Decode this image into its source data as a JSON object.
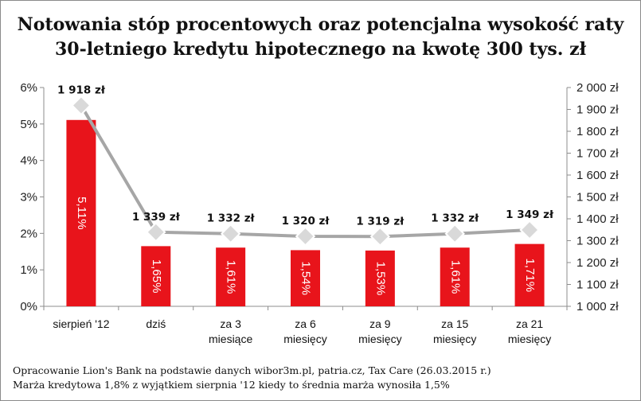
{
  "chart_data": {
    "type": "bar+line",
    "title": "Notowania stóp procentowych oraz potencjalna wysokość raty 30-letniego kredytu hipotecznego na kwotę 300 tys. zł",
    "categories": [
      [
        "sierpień '12"
      ],
      [
        "dziś"
      ],
      [
        "za 3",
        "miesiące"
      ],
      [
        "za 6",
        "miesięcy"
      ],
      [
        "za 9",
        "miesięcy"
      ],
      [
        "za 15",
        "miesięcy"
      ],
      [
        "za 21",
        "miesięcy"
      ]
    ],
    "bars": {
      "axis": "left",
      "values": [
        5.11,
        1.65,
        1.61,
        1.54,
        1.53,
        1.61,
        1.71
      ],
      "labels": [
        "5,11%",
        "1,65%",
        "1,61%",
        "1,54%",
        "1,53%",
        "1,61%",
        "1,71%"
      ],
      "color": "#e8141b"
    },
    "line": {
      "axis": "right",
      "values": [
        1918,
        1339,
        1332,
        1320,
        1319,
        1332,
        1349
      ],
      "labels": [
        "1 918 zł",
        "1 339 zł",
        "1 332 zł",
        "1 320 zł",
        "1 319 zł",
        "1 332 zł",
        "1 349 zł"
      ],
      "color": "#a6a6a6"
    },
    "y_left": {
      "min": 0,
      "max": 6,
      "step": 1,
      "tick_labels": [
        "0%",
        "1%",
        "2%",
        "3%",
        "4%",
        "5%",
        "6%"
      ]
    },
    "y_right": {
      "min": 1000,
      "max": 2000,
      "step": 100,
      "tick_labels": [
        "1 000 zł",
        "1 100 zł",
        "1 200 zł",
        "1 300 zł",
        "1 400 zł",
        "1 500 zł",
        "1 600 zł",
        "1 700 zł",
        "1 800 zł",
        "1 900 zł",
        "2 000 zł"
      ]
    },
    "grid": false,
    "legend": "none"
  },
  "footnote": {
    "line1": "Opracowanie Lion's Bank na podstawie danych wibor3m.pl, patria.cz, Tax Care (26.03.2015 r.)",
    "line2": "Marża kredytowa 1,8% z wyjątkiem sierpnia '12 kiedy to średnia marża wynosiła 1,5%"
  }
}
